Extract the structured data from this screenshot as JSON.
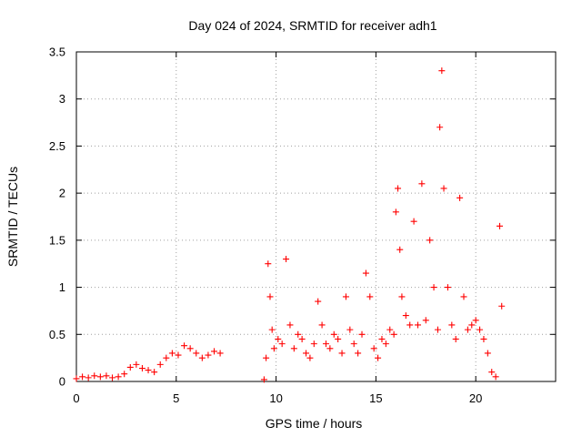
{
  "chart_data": {
    "type": "scatter",
    "title": "Day 024 of 2024, SRMTID for receiver adh1",
    "xlabel": "GPS time / hours",
    "ylabel": "SRMTID / TECUs",
    "xlim": [
      0,
      24
    ],
    "ylim": [
      0,
      3.5
    ],
    "xticks": [
      0,
      5,
      10,
      15,
      20
    ],
    "xtick_labels": [
      "0",
      "5",
      "10",
      "15",
      "20"
    ],
    "yticks": [
      0,
      0.5,
      1,
      1.5,
      2,
      2.5,
      3,
      3.5
    ],
    "ytick_labels": [
      "0",
      "0.5",
      "1",
      "1.5",
      "2",
      "2.5",
      "3",
      "3.5"
    ],
    "grid": true,
    "marker": "+",
    "color": "#ff0000",
    "series": [
      {
        "name": "SRMTID",
        "x": [
          0.0,
          0.3,
          0.6,
          0.9,
          1.2,
          1.5,
          1.8,
          2.1,
          2.4,
          2.7,
          3.0,
          3.3,
          3.6,
          3.9,
          4.2,
          4.5,
          4.8,
          5.1,
          5.4,
          5.7,
          6.0,
          6.3,
          6.6,
          6.9,
          7.2,
          9.4,
          9.5,
          9.6,
          9.7,
          9.8,
          9.9,
          10.1,
          10.3,
          10.5,
          10.7,
          10.9,
          11.1,
          11.3,
          11.5,
          11.7,
          11.9,
          12.1,
          12.3,
          12.5,
          12.7,
          12.9,
          13.1,
          13.3,
          13.5,
          13.7,
          13.9,
          14.1,
          14.3,
          14.5,
          14.7,
          14.9,
          15.1,
          15.3,
          15.5,
          15.7,
          15.9,
          16.0,
          16.1,
          16.2,
          16.3,
          16.5,
          16.7,
          16.9,
          17.1,
          17.3,
          17.5,
          17.7,
          17.9,
          18.1,
          18.2,
          18.3,
          18.4,
          18.6,
          18.8,
          19.0,
          19.2,
          19.4,
          19.6,
          19.8,
          20.0,
          20.2,
          20.4,
          20.6,
          20.8,
          21.0,
          21.2,
          21.3
        ],
        "y": [
          0.03,
          0.05,
          0.04,
          0.06,
          0.05,
          0.06,
          0.04,
          0.05,
          0.08,
          0.15,
          0.18,
          0.14,
          0.12,
          0.1,
          0.18,
          0.25,
          0.3,
          0.28,
          0.38,
          0.35,
          0.3,
          0.25,
          0.28,
          0.32,
          0.3,
          0.02,
          0.25,
          1.25,
          0.9,
          0.55,
          0.35,
          0.45,
          0.4,
          1.3,
          0.6,
          0.35,
          0.5,
          0.45,
          0.3,
          0.25,
          0.4,
          0.85,
          0.6,
          0.4,
          0.35,
          0.5,
          0.45,
          0.3,
          0.9,
          0.55,
          0.4,
          0.3,
          0.5,
          1.15,
          0.9,
          0.35,
          0.25,
          0.45,
          0.4,
          0.55,
          0.5,
          1.8,
          2.05,
          1.4,
          0.9,
          0.7,
          0.6,
          1.7,
          0.6,
          2.1,
          0.65,
          1.5,
          1.0,
          0.55,
          2.7,
          3.3,
          2.05,
          1.0,
          0.6,
          0.45,
          1.95,
          0.9,
          0.55,
          0.6,
          0.65,
          0.55,
          0.45,
          0.3,
          0.1,
          0.05,
          1.65,
          0.8
        ]
      }
    ]
  }
}
